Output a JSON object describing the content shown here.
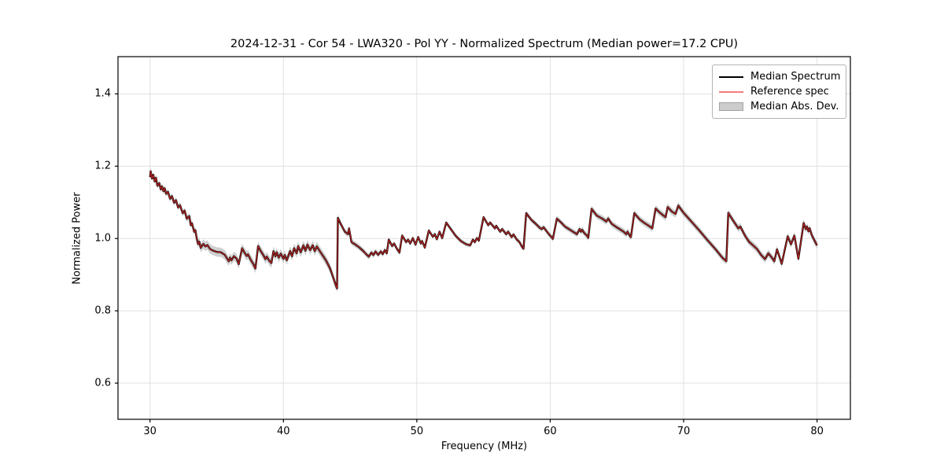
{
  "title": "2024-12-31 - Cor 54 - LWA320 - Pol YY - Normalized Spectrum (Median power=17.2 CPU)",
  "legend": {
    "items": [
      {
        "label": "Median Spectrum",
        "type": "line",
        "color": "#000000"
      },
      {
        "label": "Reference spec",
        "type": "line",
        "color": "#f47c7c"
      },
      {
        "label": "Median Abs. Dev.",
        "type": "patch",
        "color": "#cccccc"
      }
    ]
  },
  "chart_data": {
    "type": "line",
    "title": "2024-12-31 - Cor 54 - LWA320 - Pol YY - Normalized Spectrum (Median power=17.2 CPU)",
    "xlabel": "Frequency (MHz)",
    "ylabel": "Normalized Power",
    "xlim": [
      27.6,
      82.5
    ],
    "ylim": [
      0.5,
      1.503
    ],
    "x_ticks": [
      30,
      40,
      50,
      60,
      70,
      80
    ],
    "y_ticks": [
      0.6,
      0.8,
      1.0,
      1.2,
      1.4
    ],
    "grid": true,
    "legend_position": "upper right",
    "colors": {
      "median_line": "#000000",
      "reference_line": "#c22626",
      "mad_band": "rgba(170,170,170,0.55)",
      "gridline": "#e0e0e0",
      "spine": "#000000"
    },
    "series": [
      {
        "name": "Median Spectrum",
        "points": [
          [
            30.0,
            1.17
          ],
          [
            30.05,
            1.186
          ],
          [
            30.15,
            1.166
          ],
          [
            30.25,
            1.176
          ],
          [
            30.35,
            1.158
          ],
          [
            30.45,
            1.168
          ],
          [
            30.55,
            1.146
          ],
          [
            30.7,
            1.153
          ],
          [
            30.8,
            1.136
          ],
          [
            30.9,
            1.144
          ],
          [
            31.0,
            1.131
          ],
          [
            31.1,
            1.139
          ],
          [
            31.2,
            1.124
          ],
          [
            31.35,
            1.129
          ],
          [
            31.5,
            1.11
          ],
          [
            31.65,
            1.117
          ],
          [
            31.8,
            1.099
          ],
          [
            31.95,
            1.106
          ],
          [
            32.1,
            1.086
          ],
          [
            32.25,
            1.092
          ],
          [
            32.45,
            1.07
          ],
          [
            32.6,
            1.077
          ],
          [
            32.75,
            1.055
          ],
          [
            32.95,
            1.062
          ],
          [
            33.05,
            1.037
          ],
          [
            33.15,
            1.042
          ],
          [
            33.3,
            1.019
          ],
          [
            33.4,
            1.023
          ],
          [
            33.5,
            1.0
          ],
          [
            33.6,
            0.985
          ],
          [
            33.7,
            0.991
          ],
          [
            33.8,
            0.974
          ],
          [
            34.0,
            0.985
          ],
          [
            34.15,
            0.978
          ],
          [
            34.3,
            0.982
          ],
          [
            34.5,
            0.971
          ],
          [
            34.7,
            0.967
          ],
          [
            35.0,
            0.963
          ],
          [
            35.3,
            0.962
          ],
          [
            35.6,
            0.955
          ],
          [
            35.9,
            0.937
          ],
          [
            36.0,
            0.947
          ],
          [
            36.1,
            0.94
          ],
          [
            36.3,
            0.951
          ],
          [
            36.5,
            0.944
          ],
          [
            36.65,
            0.929
          ],
          [
            36.9,
            0.973
          ],
          [
            37.1,
            0.96
          ],
          [
            37.25,
            0.952
          ],
          [
            37.35,
            0.956
          ],
          [
            37.55,
            0.941
          ],
          [
            37.75,
            0.929
          ],
          [
            37.9,
            0.917
          ],
          [
            38.1,
            0.979
          ],
          [
            38.3,
            0.965
          ],
          [
            38.5,
            0.954
          ],
          [
            38.65,
            0.943
          ],
          [
            38.75,
            0.95
          ],
          [
            38.95,
            0.938
          ],
          [
            39.1,
            0.932
          ],
          [
            39.25,
            0.965
          ],
          [
            39.4,
            0.951
          ],
          [
            39.5,
            0.962
          ],
          [
            39.65,
            0.947
          ],
          [
            39.8,
            0.958
          ],
          [
            40.0,
            0.944
          ],
          [
            40.1,
            0.954
          ],
          [
            40.25,
            0.94
          ],
          [
            40.5,
            0.965
          ],
          [
            40.65,
            0.951
          ],
          [
            40.8,
            0.973
          ],
          [
            41.0,
            0.959
          ],
          [
            41.1,
            0.979
          ],
          [
            41.3,
            0.962
          ],
          [
            41.5,
            0.981
          ],
          [
            41.65,
            0.966
          ],
          [
            41.8,
            0.983
          ],
          [
            42.0,
            0.968
          ],
          [
            42.2,
            0.981
          ],
          [
            42.35,
            0.965
          ],
          [
            42.5,
            0.978
          ],
          [
            42.8,
            0.961
          ],
          [
            43.0,
            0.95
          ],
          [
            43.2,
            0.939
          ],
          [
            43.5,
            0.917
          ],
          [
            43.7,
            0.896
          ],
          [
            43.95,
            0.868
          ],
          [
            44.02,
            0.862
          ],
          [
            44.08,
            1.057
          ],
          [
            44.3,
            1.04
          ],
          [
            44.6,
            1.019
          ],
          [
            44.85,
            1.012
          ],
          [
            44.92,
            1.028
          ],
          [
            45.1,
            0.99
          ],
          [
            45.4,
            0.983
          ],
          [
            45.7,
            0.975
          ],
          [
            46.0,
            0.965
          ],
          [
            46.2,
            0.957
          ],
          [
            46.4,
            0.95
          ],
          [
            46.6,
            0.961
          ],
          [
            46.75,
            0.954
          ],
          [
            46.9,
            0.964
          ],
          [
            47.1,
            0.955
          ],
          [
            47.3,
            0.964
          ],
          [
            47.45,
            0.957
          ],
          [
            47.6,
            0.968
          ],
          [
            47.75,
            0.959
          ],
          [
            47.9,
            0.997
          ],
          [
            48.15,
            0.979
          ],
          [
            48.3,
            0.986
          ],
          [
            48.5,
            0.972
          ],
          [
            48.7,
            0.961
          ],
          [
            48.9,
            1.008
          ],
          [
            49.2,
            0.99
          ],
          [
            49.35,
            0.997
          ],
          [
            49.5,
            0.986
          ],
          [
            49.7,
            1.001
          ],
          [
            49.9,
            0.983
          ],
          [
            50.1,
            1.004
          ],
          [
            50.3,
            0.986
          ],
          [
            50.4,
            0.993
          ],
          [
            50.6,
            0.975
          ],
          [
            50.9,
            1.022
          ],
          [
            51.2,
            1.005
          ],
          [
            51.35,
            1.012
          ],
          [
            51.5,
            0.998
          ],
          [
            51.7,
            1.019
          ],
          [
            51.9,
            1.001
          ],
          [
            52.2,
            1.044
          ],
          [
            52.55,
            1.026
          ],
          [
            52.9,
            1.008
          ],
          [
            53.3,
            0.993
          ],
          [
            53.7,
            0.984
          ],
          [
            54.0,
            0.981
          ],
          [
            54.2,
            0.997
          ],
          [
            54.35,
            0.99
          ],
          [
            54.5,
            1.001
          ],
          [
            54.65,
            0.994
          ],
          [
            55.0,
            1.059
          ],
          [
            55.35,
            1.037
          ],
          [
            55.5,
            1.044
          ],
          [
            55.85,
            1.028
          ],
          [
            55.95,
            1.035
          ],
          [
            56.25,
            1.019
          ],
          [
            56.4,
            1.026
          ],
          [
            56.7,
            1.012
          ],
          [
            56.85,
            1.019
          ],
          [
            57.1,
            1.004
          ],
          [
            57.25,
            1.011
          ],
          [
            57.5,
            0.997
          ],
          [
            57.7,
            0.99
          ],
          [
            57.9,
            0.976
          ],
          [
            58.0,
            0.972
          ],
          [
            58.2,
            1.07
          ],
          [
            58.6,
            1.051
          ],
          [
            58.9,
            1.041
          ],
          [
            59.2,
            1.03
          ],
          [
            59.35,
            1.026
          ],
          [
            59.5,
            1.031
          ],
          [
            59.9,
            1.012
          ],
          [
            60.1,
            1.004
          ],
          [
            60.2,
            0.999
          ],
          [
            60.5,
            1.055
          ],
          [
            60.9,
            1.041
          ],
          [
            61.1,
            1.033
          ],
          [
            61.4,
            1.026
          ],
          [
            61.7,
            1.019
          ],
          [
            62.0,
            1.012
          ],
          [
            62.2,
            1.026
          ],
          [
            62.3,
            1.019
          ],
          [
            62.4,
            1.024
          ],
          [
            62.55,
            1.015
          ],
          [
            62.75,
            1.008
          ],
          [
            62.85,
            1.002
          ],
          [
            63.1,
            1.082
          ],
          [
            63.35,
            1.07
          ],
          [
            63.5,
            1.063
          ],
          [
            63.9,
            1.055
          ],
          [
            64.2,
            1.047
          ],
          [
            64.35,
            1.055
          ],
          [
            64.6,
            1.041
          ],
          [
            64.9,
            1.033
          ],
          [
            65.2,
            1.026
          ],
          [
            65.5,
            1.019
          ],
          [
            65.7,
            1.012
          ],
          [
            65.8,
            1.019
          ],
          [
            65.95,
            1.008
          ],
          [
            66.05,
            1.004
          ],
          [
            66.3,
            1.07
          ],
          [
            66.7,
            1.053
          ],
          [
            67.1,
            1.042
          ],
          [
            67.4,
            1.035
          ],
          [
            67.65,
            1.028
          ],
          [
            67.9,
            1.083
          ],
          [
            68.2,
            1.072
          ],
          [
            68.5,
            1.063
          ],
          [
            68.65,
            1.059
          ],
          [
            68.8,
            1.087
          ],
          [
            69.1,
            1.075
          ],
          [
            69.4,
            1.068
          ],
          [
            69.6,
            1.091
          ],
          [
            70.0,
            1.071
          ],
          [
            70.6,
            1.046
          ],
          [
            71.2,
            1.021
          ],
          [
            71.8,
            0.995
          ],
          [
            72.4,
            0.97
          ],
          [
            72.9,
            0.947
          ],
          [
            73.2,
            0.937
          ],
          [
            73.35,
            1.071
          ],
          [
            73.7,
            1.05
          ],
          [
            74.1,
            1.028
          ],
          [
            74.25,
            1.033
          ],
          [
            74.6,
            1.008
          ],
          [
            74.9,
            0.991
          ],
          [
            75.2,
            0.981
          ],
          [
            75.5,
            0.971
          ],
          [
            75.8,
            0.955
          ],
          [
            76.1,
            0.943
          ],
          [
            76.35,
            0.959
          ],
          [
            76.6,
            0.948
          ],
          [
            76.8,
            0.937
          ],
          [
            77.0,
            0.97
          ],
          [
            77.2,
            0.948
          ],
          [
            77.35,
            0.93
          ],
          [
            77.8,
            1.006
          ],
          [
            78.05,
            0.984
          ],
          [
            78.3,
            1.008
          ],
          [
            78.6,
            0.944
          ],
          [
            79.0,
            1.043
          ],
          [
            79.15,
            1.026
          ],
          [
            79.25,
            1.033
          ],
          [
            79.35,
            1.02
          ],
          [
            79.45,
            1.028
          ],
          [
            79.6,
            1.01
          ],
          [
            79.8,
            0.995
          ],
          [
            80.0,
            0.981
          ]
        ]
      },
      {
        "name": "Reference spec",
        "same_points_as": "Median Spectrum"
      },
      {
        "name": "Median Abs. Dev.",
        "type": "band_halfwidth",
        "dev_points": [
          [
            30,
            0.008
          ],
          [
            33.4,
            0.009
          ],
          [
            33.8,
            0.013
          ],
          [
            43.5,
            0.013
          ],
          [
            44.0,
            0.011
          ],
          [
            44.3,
            0.008
          ],
          [
            46,
            0.008
          ],
          [
            48,
            0.007
          ],
          [
            50,
            0.006
          ],
          [
            56,
            0.006
          ],
          [
            58,
            0.007
          ],
          [
            62,
            0.008
          ],
          [
            63,
            0.009
          ],
          [
            66,
            0.009
          ],
          [
            70,
            0.01
          ],
          [
            73,
            0.009
          ],
          [
            74,
            0.01
          ],
          [
            80,
            0.01
          ]
        ]
      }
    ]
  }
}
